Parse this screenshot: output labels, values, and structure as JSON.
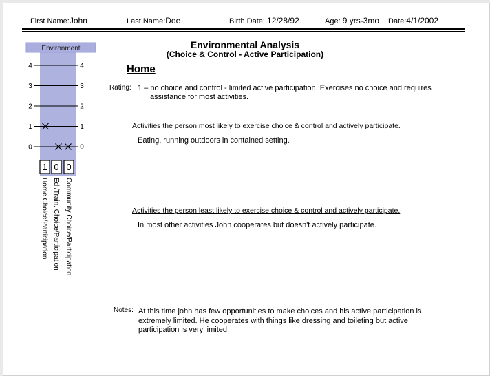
{
  "header": {
    "first_name_label": "First Name:",
    "first_name": "John",
    "last_name_label": "Last Name:",
    "last_name": "Doe",
    "birth_date_label": "Birth Date:",
    "birth_date": "12/28/92",
    "age_label": "Age:",
    "age": "9 yrs-3mo",
    "date_label": "Date:",
    "date": "4/1/2002"
  },
  "title": "Environmental Analysis",
  "subtitle": "(Choice & Control - Active Participation)",
  "section": "Home",
  "rating_label": "Rating:",
  "rating_line1": "1 – no choice and control - limited active participation. Exercises no choice and requires",
  "rating_line2": "assistance for most activities.",
  "most_likely_heading": "Activities the person most likely to exercise choice & control and actively participate.",
  "most_likely_text": "Eating, running outdoors in contained setting.",
  "least_likely_heading": "Activities the person least likely to exercise choice & control and actively participate.",
  "least_likely_text": "In most other activities John cooperates but doesn't actively participate.",
  "notes_label": "Notes:",
  "notes_lines": [
    "At this time john has few opportunities to make choices and his active participation is",
    "extremely limited. He cooperates with things like dressing and toileting but active",
    "participation is very limited."
  ],
  "chart_data": {
    "type": "scatter",
    "title": "Environment",
    "ylim": [
      0,
      4
    ],
    "yticks": [
      "0",
      "1",
      "2",
      "3",
      "4"
    ],
    "categories": [
      "Home Choice/Participation",
      "Ed /Train. Choice/Participation",
      "Community Choice/Participation"
    ],
    "values": [
      1,
      0,
      0
    ],
    "value_labels": [
      "1",
      "0",
      "0"
    ],
    "marker": "x",
    "fill_color": "#aeb2de",
    "header_color": "#a9aede"
  }
}
